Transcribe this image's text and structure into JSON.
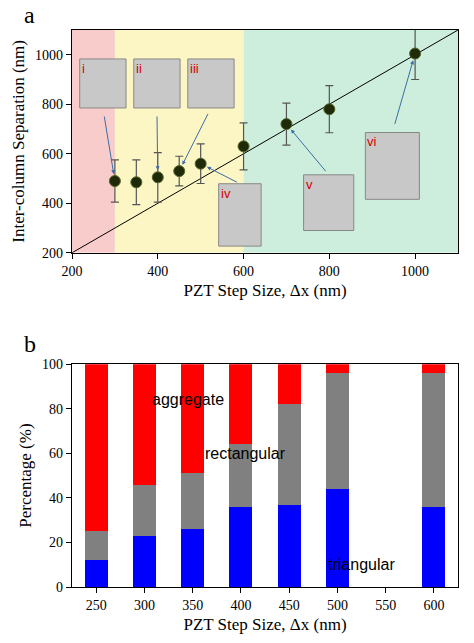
{
  "chart_data": [
    {
      "panel": "a",
      "type": "scatter",
      "x": [
        300,
        350,
        400,
        450,
        500,
        600,
        700,
        800,
        1000
      ],
      "values": [
        490,
        485,
        505,
        530,
        560,
        630,
        720,
        780,
        1005
      ],
      "errors": [
        85,
        90,
        100,
        60,
        80,
        95,
        85,
        95,
        105
      ],
      "color": "#1e2a08",
      "marker": "circle",
      "xlabel": "PZT Step Size, Δx (nm)",
      "ylabel": "Inter-column Separation (nm)",
      "xlim": [
        200,
        1100
      ],
      "ylim": [
        200,
        1100
      ],
      "xticks": [
        200,
        400,
        600,
        800,
        1000
      ],
      "yticks": [
        200,
        400,
        600,
        800,
        1000
      ],
      "reference_line": {
        "x": [
          200,
          1100
        ],
        "y": [
          200,
          1100
        ],
        "color": "#000000"
      },
      "regions": [
        {
          "x0": 200,
          "x1": 300,
          "color": "#f9cccc"
        },
        {
          "x0": 300,
          "x1": 600,
          "color": "#fbf6c4"
        },
        {
          "x0": 600,
          "x1": 1100,
          "color": "#cdeedc"
        }
      ],
      "insets": [
        {
          "label": "i",
          "x": 300
        },
        {
          "label": "ii",
          "x": 400
        },
        {
          "label": "iii",
          "x": 450
        },
        {
          "label": "iv",
          "x": 500
        },
        {
          "label": "v",
          "x": 700
        },
        {
          "label": "vi",
          "x": 1000
        }
      ]
    },
    {
      "panel": "b",
      "type": "bar",
      "stacked": true,
      "x": [
        250,
        300,
        350,
        400,
        450,
        500,
        600
      ],
      "series": [
        {
          "name": "triangular",
          "color": "#0000ff",
          "values": [
            12,
            23,
            26,
            36,
            37,
            44,
            36
          ]
        },
        {
          "name": "rectangular",
          "color": "#808080",
          "values": [
            13,
            23,
            25,
            28,
            45,
            52,
            60
          ]
        },
        {
          "name": "aggregate",
          "color": "#ff0000",
          "values": [
            75,
            54,
            49,
            36,
            18,
            4,
            4
          ]
        }
      ],
      "xlabel": "PZT Step Size, Δx (nm)",
      "ylabel": "Percentage (%)",
      "xlim": [
        225,
        625
      ],
      "ylim": [
        0,
        100
      ],
      "xticks": [
        250,
        300,
        350,
        400,
        450,
        500,
        550,
        600
      ],
      "yticks": [
        0,
        20,
        40,
        60,
        80,
        100
      ]
    }
  ]
}
